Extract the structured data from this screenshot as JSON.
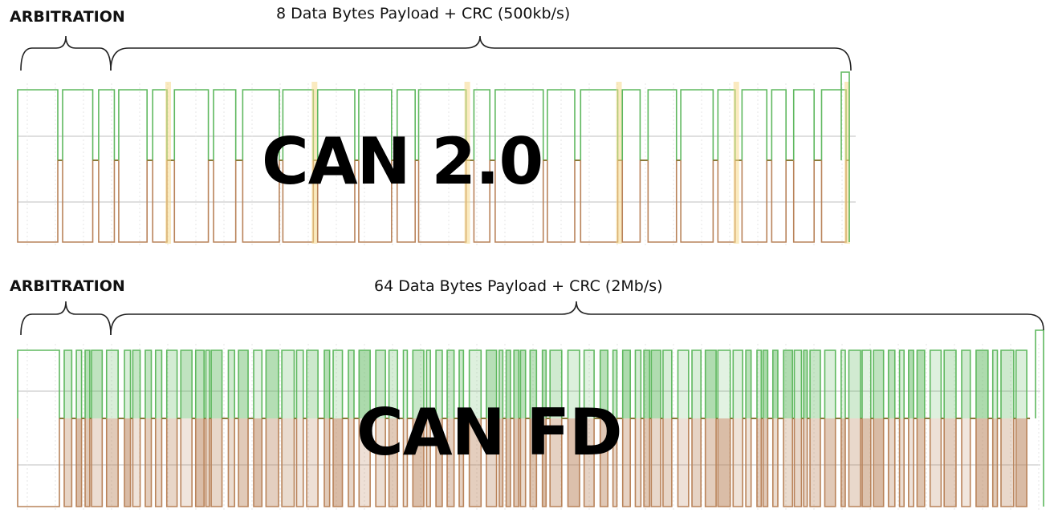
{
  "top_panel": {
    "arbitration_label": "ARBITRATION",
    "payload_label": "8 Data Bytes Payload + CRC (500kb/s)",
    "protocol_label": "CAN 2.0"
  },
  "bottom_panel": {
    "arbitration_label": "ARBITRATION",
    "payload_label": "64 Data Bytes Payload + CRC (2Mb/s)",
    "protocol_label": "CAN FD"
  },
  "colors": {
    "can_high": "#5fb85f",
    "can_low": "#b9835a",
    "highlight": "#f5d98a",
    "grid": "#cccccc"
  }
}
